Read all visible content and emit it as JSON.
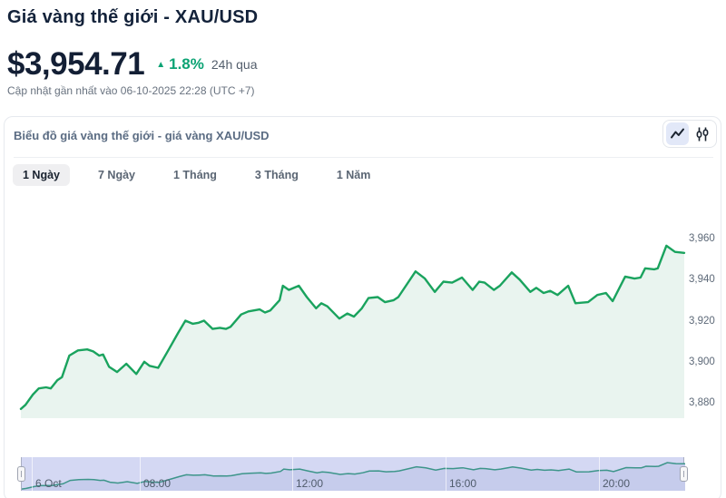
{
  "page": {
    "title": "Giá vàng thế giới - XAU/USD",
    "price": "$3,954.71",
    "change": "1.8%",
    "change_direction": "up",
    "change_period": "24h qua",
    "updated": "Cập nhật gần nhất vào 06-10-2025 22:28 (UTC +7)"
  },
  "panel": {
    "title": "Biểu đồ giá vàng thế giới - giá vàng XAU/USD",
    "chart_type_toggle": [
      {
        "name": "line-chart",
        "selected": true
      },
      {
        "name": "candlestick-chart",
        "selected": false
      }
    ]
  },
  "tabs": {
    "items": [
      {
        "label": "1 Ngày",
        "selected": true
      },
      {
        "label": "7 Ngày",
        "selected": false
      },
      {
        "label": "1 Tháng",
        "selected": false
      },
      {
        "label": "3 Tháng",
        "selected": false
      },
      {
        "label": "1 Năm",
        "selected": false
      }
    ]
  },
  "colors": {
    "accent_green": "#0ca374",
    "title_navy": "#13223a",
    "chart_line": "#1aa35e",
    "chart_fill": "#e9f4ef",
    "navigator_band": "#d4d8f3",
    "navigator_line": "#3d958a"
  },
  "chart_data": {
    "type": "area",
    "title": "Biểu đồ giá vàng thế giới - giá vàng XAU/USD",
    "xlabel": "",
    "ylabel": "",
    "ylim": [
      3873,
      3971
    ],
    "y_ticks": [
      3960,
      3940,
      3920,
      3900,
      3880
    ],
    "y_tick_labels": [
      "3,960",
      "3,940",
      "3,920",
      "3,900",
      "3,880"
    ],
    "grid": "off",
    "legend": "none",
    "line_color": "#1aa35e",
    "area_fill": "#e9f4ef",
    "x_labels": [
      {
        "label": "6 Oct",
        "pos": 0.015
      },
      {
        "label": "08:00",
        "pos": 0.178
      },
      {
        "label": "12:00",
        "pos": 0.408
      },
      {
        "label": "16:00",
        "pos": 0.639
      },
      {
        "label": "20:00",
        "pos": 0.87
      }
    ],
    "series": [
      {
        "name": "XAU/USD",
        "points": [
          [
            0.0,
            3877
          ],
          [
            0.007,
            3879
          ],
          [
            0.018,
            3884
          ],
          [
            0.027,
            3887
          ],
          [
            0.038,
            3887.5
          ],
          [
            0.045,
            3887
          ],
          [
            0.055,
            3891
          ],
          [
            0.062,
            3892.5
          ],
          [
            0.073,
            3903
          ],
          [
            0.086,
            3905.5
          ],
          [
            0.1,
            3906
          ],
          [
            0.109,
            3905
          ],
          [
            0.118,
            3903
          ],
          [
            0.124,
            3903.5
          ],
          [
            0.133,
            3897.5
          ],
          [
            0.145,
            3895
          ],
          [
            0.159,
            3899
          ],
          [
            0.174,
            3894
          ],
          [
            0.186,
            3900
          ],
          [
            0.194,
            3898
          ],
          [
            0.207,
            3897
          ],
          [
            0.223,
            3906
          ],
          [
            0.237,
            3914
          ],
          [
            0.248,
            3920
          ],
          [
            0.259,
            3918.5
          ],
          [
            0.268,
            3919
          ],
          [
            0.276,
            3920
          ],
          [
            0.289,
            3916
          ],
          [
            0.3,
            3916.5
          ],
          [
            0.309,
            3916
          ],
          [
            0.316,
            3917
          ],
          [
            0.332,
            3923
          ],
          [
            0.343,
            3924.5
          ],
          [
            0.36,
            3925.5
          ],
          [
            0.368,
            3924
          ],
          [
            0.376,
            3925
          ],
          [
            0.39,
            3930
          ],
          [
            0.395,
            3937
          ],
          [
            0.404,
            3935
          ],
          [
            0.419,
            3937
          ],
          [
            0.431,
            3931.5
          ],
          [
            0.445,
            3926
          ],
          [
            0.453,
            3928.5
          ],
          [
            0.462,
            3927
          ],
          [
            0.48,
            3921
          ],
          [
            0.492,
            3923.5
          ],
          [
            0.502,
            3922
          ],
          [
            0.514,
            3926
          ],
          [
            0.524,
            3931
          ],
          [
            0.538,
            3931.5
          ],
          [
            0.549,
            3929
          ],
          [
            0.562,
            3930
          ],
          [
            0.569,
            3931.5
          ],
          [
            0.595,
            3944
          ],
          [
            0.609,
            3940.5
          ],
          [
            0.624,
            3934
          ],
          [
            0.637,
            3939
          ],
          [
            0.65,
            3938.5
          ],
          [
            0.665,
            3941
          ],
          [
            0.681,
            3935
          ],
          [
            0.691,
            3939
          ],
          [
            0.699,
            3938.5
          ],
          [
            0.713,
            3935
          ],
          [
            0.722,
            3937
          ],
          [
            0.74,
            3943.5
          ],
          [
            0.752,
            3940
          ],
          [
            0.768,
            3934
          ],
          [
            0.777,
            3936
          ],
          [
            0.788,
            3933.5
          ],
          [
            0.798,
            3934.5
          ],
          [
            0.809,
            3932.5
          ],
          [
            0.825,
            3937
          ],
          [
            0.836,
            3928.5
          ],
          [
            0.855,
            3929
          ],
          [
            0.869,
            3932.5
          ],
          [
            0.882,
            3933.5
          ],
          [
            0.892,
            3929.5
          ],
          [
            0.911,
            3941.5
          ],
          [
            0.925,
            3940.5
          ],
          [
            0.934,
            3941
          ],
          [
            0.941,
            3945.5
          ],
          [
            0.955,
            3945
          ],
          [
            0.96,
            3945.5
          ],
          [
            0.973,
            3956.5
          ],
          [
            0.986,
            3953.5
          ],
          [
            1.0,
            3953
          ]
        ]
      }
    ],
    "navigator": {
      "present": true,
      "band_color": "#d4d8f3",
      "line_color": "#3d958a",
      "fill_below": "#c6ccec"
    }
  }
}
